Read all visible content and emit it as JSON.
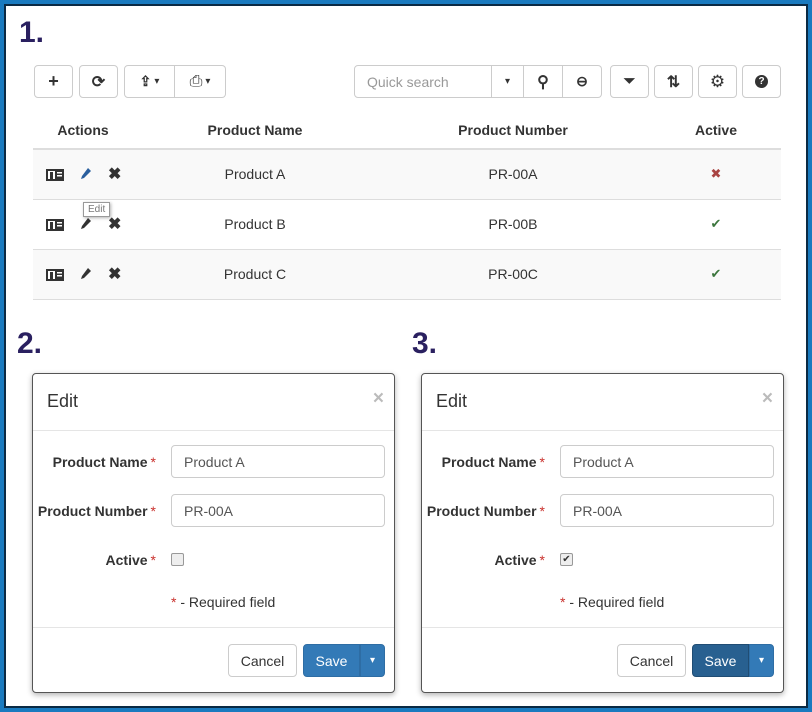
{
  "steps": [
    "1.",
    "2.",
    "3."
  ],
  "toolbar": {
    "add": "+",
    "refresh": "⟳",
    "export": "⇪",
    "print": "⎙",
    "search_placeholder": "Quick search",
    "caret": "▾",
    "search": "⚲",
    "zoom_out": "⊖",
    "filter": "⏷",
    "sort": "⇅",
    "settings": "⚙",
    "help": "?"
  },
  "table": {
    "headers": [
      "Actions",
      "Product Name",
      "Product Number",
      "Active"
    ],
    "rows": [
      {
        "name": "Product A",
        "number": "PR-00A",
        "active": false,
        "active_glyph": "✖"
      },
      {
        "name": "Product B",
        "number": "PR-00B",
        "active": true,
        "active_glyph": "✔"
      },
      {
        "name": "Product C",
        "number": "PR-00C",
        "active": true,
        "active_glyph": "✔"
      }
    ],
    "tooltip": "Edit",
    "icons": {
      "view": "id-card-icon",
      "edit": "pencil-icon",
      "delete": "times-icon"
    },
    "colors": {
      "active_true": "#3c763d",
      "active_false": "#a94442"
    }
  },
  "modals": [
    {
      "title": "Edit",
      "close": "×",
      "labels": {
        "name": "Product Name",
        "number": "Product Number",
        "active": "Active"
      },
      "req": "*",
      "values": {
        "name": "Product A",
        "number": "PR-00A"
      },
      "active_checked": false,
      "note_star": "*",
      "note": " - Required field",
      "cancel": "Cancel",
      "save": "Save",
      "caret": "▾"
    },
    {
      "title": "Edit",
      "close": "×",
      "labels": {
        "name": "Product Name",
        "number": "Product Number",
        "active": "Active"
      },
      "req": "*",
      "values": {
        "name": "Product A",
        "number": "PR-00A"
      },
      "active_checked": true,
      "check": "✔",
      "note_star": "*",
      "note": " - Required field",
      "cancel": "Cancel",
      "save": "Save",
      "caret": "▾"
    }
  ],
  "colors": {
    "frame": "#1a7abf",
    "step": "#2a2060",
    "primary": "#337ab7",
    "primary_hover": "#286090"
  }
}
